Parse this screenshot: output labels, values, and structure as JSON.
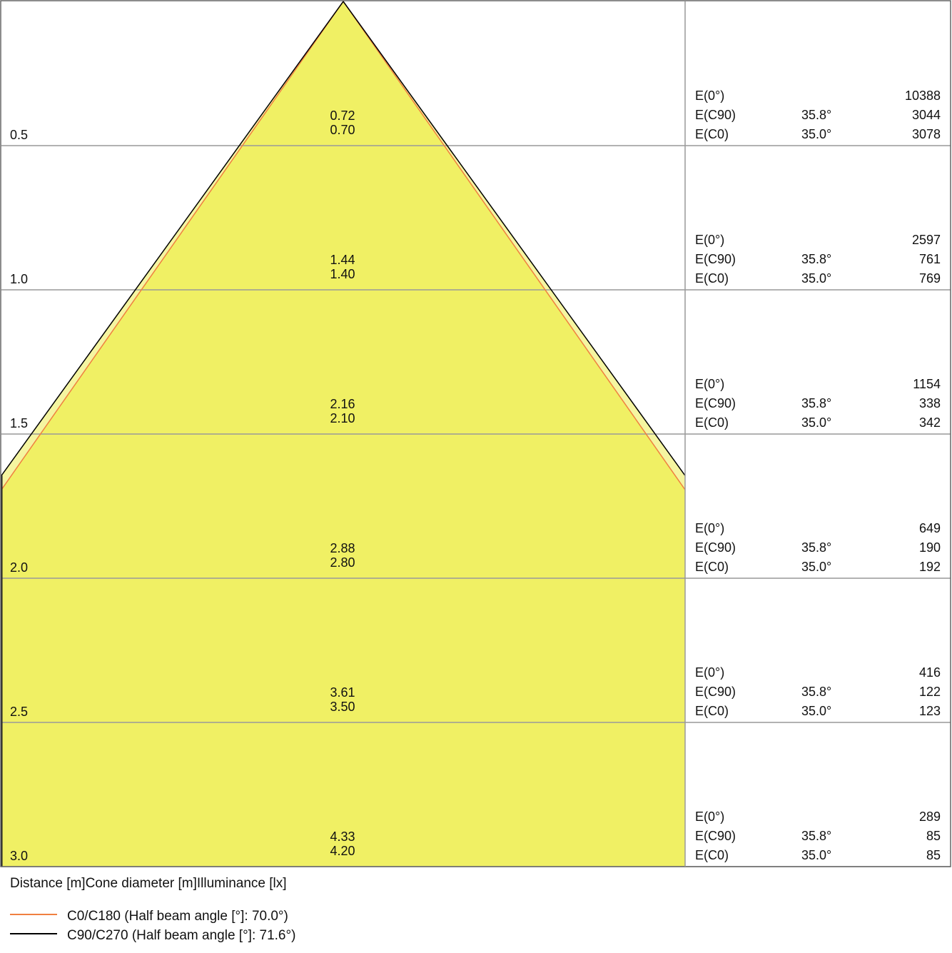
{
  "chart_data": {
    "type": "cone-diagram",
    "distance_max": 3.0,
    "rows": [
      {
        "distance": "0.5",
        "diam_c90": "0.72",
        "diam_c0": "0.70",
        "e0": "10388",
        "ec90": "3044",
        "ec0": "3078"
      },
      {
        "distance": "1.0",
        "diam_c90": "1.44",
        "diam_c0": "1.40",
        "e0": "2597",
        "ec90": "761",
        "ec0": "769"
      },
      {
        "distance": "1.5",
        "diam_c90": "2.16",
        "diam_c0": "2.10",
        "e0": "1154",
        "ec90": "338",
        "ec0": "342"
      },
      {
        "distance": "2.0",
        "diam_c90": "2.88",
        "diam_c0": "2.80",
        "e0": "649",
        "ec90": "190",
        "ec0": "192"
      },
      {
        "distance": "2.5",
        "diam_c90": "3.61",
        "diam_c0": "3.50",
        "e0": "416",
        "ec90": "122",
        "ec0": "123"
      },
      {
        "distance": "3.0",
        "diam_c90": "4.33",
        "diam_c0": "4.20",
        "e0": "289",
        "ec90": "85",
        "ec0": "85"
      }
    ],
    "labels": {
      "e0": "E(0°)",
      "ec90": "E(C90)",
      "ec0": "E(C0)",
      "angle_c90": "35.8°",
      "angle_c0": "35.0°"
    },
    "axis_caption": "Distance [m]Cone diameter [m]Illuminance [lx]",
    "series": [
      {
        "name": "C0/C180 (Half beam angle [°]: 70.0°)",
        "half_angle": 35.0,
        "color": "#f08040"
      },
      {
        "name": "C90/C270 (Half beam angle [°]: 71.6°)",
        "half_angle": 35.8,
        "color": "#000000"
      }
    ],
    "fill_colors": {
      "inner": "#f0f064",
      "outer": "#f5f5a0"
    },
    "grid_color": "#999999"
  }
}
